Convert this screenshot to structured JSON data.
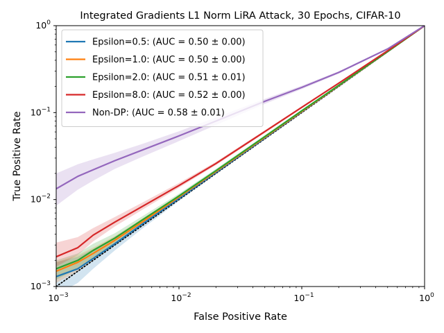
{
  "chart_data": {
    "type": "line",
    "title": "Integrated Gradients L1 Norm LiRA Attack, 30 Epochs, CIFAR-10",
    "xlabel": "False Positive Rate",
    "ylabel": "True Positive Rate",
    "xscale": "log",
    "yscale": "log",
    "xlim": [
      0.001,
      1
    ],
    "ylim": [
      0.001,
      1
    ],
    "x_ticks": [
      {
        "value": 0.001,
        "base": "10",
        "exp": "−3"
      },
      {
        "value": 0.01,
        "base": "10",
        "exp": "−2"
      },
      {
        "value": 0.1,
        "base": "10",
        "exp": "−1"
      },
      {
        "value": 1,
        "base": "10",
        "exp": "0"
      }
    ],
    "y_ticks": [
      {
        "value": 0.001,
        "base": "10",
        "exp": "−3"
      },
      {
        "value": 0.01,
        "base": "10",
        "exp": "−2"
      },
      {
        "value": 0.1,
        "base": "10",
        "exp": "−1"
      },
      {
        "value": 1,
        "base": "10",
        "exp": "0"
      }
    ],
    "grid": false,
    "legend_position": "upper-left",
    "reference_line": {
      "style": "dotted",
      "color": "#000000"
    },
    "series": [
      {
        "name": "Epsilon=0.5: (AUC = 0.50 ± 0.00)",
        "color": "#1f77b4",
        "x": [
          0.001,
          0.0015,
          0.002,
          0.003,
          0.005,
          0.01,
          0.02,
          0.05,
          0.1,
          0.2,
          0.5,
          1
        ],
        "y": [
          0.0013,
          0.0016,
          0.0021,
          0.0031,
          0.0052,
          0.0103,
          0.0205,
          0.051,
          0.102,
          0.203,
          0.502,
          1
        ],
        "band_low": [
          0.0008,
          0.0011,
          0.0016,
          0.0026,
          0.0046,
          0.0096,
          0.0196,
          0.049,
          0.099,
          0.199,
          0.498,
          1
        ],
        "band_high": [
          0.0019,
          0.0022,
          0.0027,
          0.0037,
          0.0058,
          0.011,
          0.0214,
          0.053,
          0.105,
          0.207,
          0.506,
          1
        ]
      },
      {
        "name": "Epsilon=1.0: (AUC = 0.50 ± 0.00)",
        "color": "#ff7f0e",
        "x": [
          0.001,
          0.0015,
          0.002,
          0.003,
          0.005,
          0.01,
          0.02,
          0.05,
          0.1,
          0.2,
          0.5,
          1
        ],
        "y": [
          0.0015,
          0.0019,
          0.0024,
          0.0034,
          0.0055,
          0.0107,
          0.021,
          0.052,
          0.103,
          0.204,
          0.503,
          1
        ],
        "band_low": [
          0.0011,
          0.0015,
          0.002,
          0.003,
          0.005,
          0.0101,
          0.0202,
          0.0505,
          0.101,
          0.201,
          0.5,
          1
        ],
        "band_high": [
          0.0019,
          0.0023,
          0.0028,
          0.0038,
          0.006,
          0.0113,
          0.0218,
          0.0535,
          0.105,
          0.207,
          0.506,
          1
        ]
      },
      {
        "name": "Epsilon=2.0: (AUC = 0.51 ± 0.01)",
        "color": "#2ca02c",
        "x": [
          0.001,
          0.0015,
          0.002,
          0.003,
          0.005,
          0.01,
          0.02,
          0.05,
          0.1,
          0.2,
          0.5,
          1
        ],
        "y": [
          0.0016,
          0.002,
          0.0026,
          0.0036,
          0.0058,
          0.011,
          0.0215,
          0.053,
          0.105,
          0.206,
          0.505,
          1
        ],
        "band_low": [
          0.0012,
          0.0016,
          0.0021,
          0.0031,
          0.0052,
          0.0103,
          0.0205,
          0.051,
          0.102,
          0.202,
          0.501,
          1
        ],
        "band_high": [
          0.002,
          0.0024,
          0.0031,
          0.0041,
          0.0064,
          0.0117,
          0.0225,
          0.055,
          0.108,
          0.21,
          0.509,
          1
        ]
      },
      {
        "name": "Epsilon=8.0: (AUC = 0.52 ± 0.00)",
        "color": "#d62728",
        "x": [
          0.001,
          0.0015,
          0.002,
          0.003,
          0.005,
          0.01,
          0.02,
          0.05,
          0.1,
          0.2,
          0.5,
          1
        ],
        "y": [
          0.0022,
          0.0028,
          0.0039,
          0.0055,
          0.0083,
          0.0145,
          0.026,
          0.0605,
          0.115,
          0.218,
          0.515,
          1
        ],
        "band_low": [
          0.0017,
          0.0023,
          0.0033,
          0.0049,
          0.0076,
          0.0137,
          0.0249,
          0.0585,
          0.112,
          0.214,
          0.511,
          1
        ],
        "band_high": [
          0.0032,
          0.0037,
          0.0047,
          0.0063,
          0.0092,
          0.0155,
          0.0272,
          0.0625,
          0.118,
          0.222,
          0.519,
          1
        ]
      },
      {
        "name": "Non-DP: (AUC = 0.58 ± 0.01)",
        "color": "#9467bd",
        "x": [
          0.001,
          0.0015,
          0.002,
          0.003,
          0.005,
          0.01,
          0.02,
          0.05,
          0.1,
          0.2,
          0.5,
          1
        ],
        "y": [
          0.0133,
          0.0185,
          0.022,
          0.028,
          0.037,
          0.054,
          0.08,
          0.135,
          0.195,
          0.29,
          0.54,
          1
        ],
        "band_low": [
          0.0085,
          0.013,
          0.0165,
          0.0225,
          0.031,
          0.047,
          0.072,
          0.126,
          0.186,
          0.281,
          0.533,
          1
        ],
        "band_high": [
          0.02,
          0.0255,
          0.029,
          0.0345,
          0.0435,
          0.061,
          0.088,
          0.144,
          0.204,
          0.299,
          0.547,
          1
        ]
      }
    ]
  }
}
